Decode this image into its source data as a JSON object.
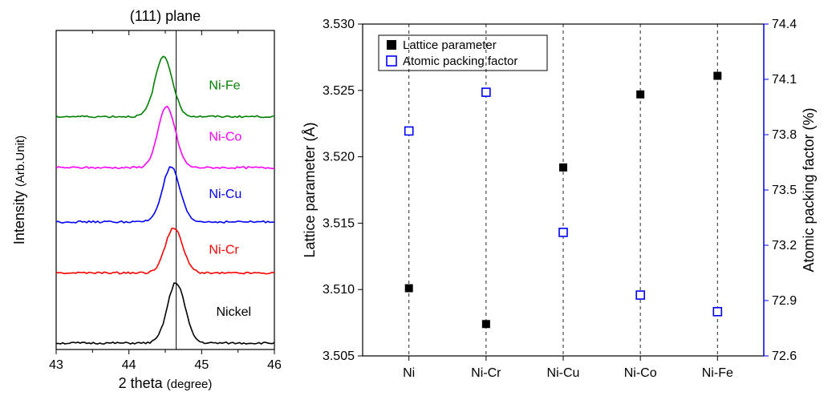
{
  "left_chart": {
    "type": "line-stack",
    "title_top": "(111) plane",
    "x_title_main": "2 theta ",
    "x_title_unit": "(degree)",
    "y_title_main": "Intensity ",
    "y_title_unit": "(Arb.Unit)",
    "xlim": [
      43,
      46
    ],
    "xticks": [
      43,
      44,
      45,
      46
    ],
    "vline_x": 44.65,
    "plot_bg": "#ffffff",
    "series": [
      {
        "name": "Nickel",
        "color": "#000000",
        "peak_x": 44.65,
        "label_x": 45.2,
        "baseline_frac": 0.02,
        "peak_frac": 0.21
      },
      {
        "name": "Ni-Cr",
        "color": "#ff0000",
        "peak_x": 44.62,
        "label_x": 45.1,
        "baseline_frac": 0.24,
        "peak_frac": 0.38
      },
      {
        "name": "Ni-Cu",
        "color": "#0000ff",
        "peak_x": 44.58,
        "label_x": 45.1,
        "baseline_frac": 0.4,
        "peak_frac": 0.57
      },
      {
        "name": "Ni-Co",
        "color": "#ff00ff",
        "peak_x": 44.52,
        "label_x": 45.1,
        "baseline_frac": 0.57,
        "peak_frac": 0.76
      },
      {
        "name": "Ni-Fe",
        "color": "#008000",
        "peak_x": 44.48,
        "label_x": 45.1,
        "baseline_frac": 0.73,
        "peak_frac": 0.92
      }
    ]
  },
  "right_chart": {
    "type": "scatter-dual-axis",
    "x_categories": [
      "Ni",
      "Ni-Cr",
      "Ni-Cu",
      "Ni-Co",
      "Ni-Fe"
    ],
    "y1_label": "Lattice parameter (Å)",
    "y1_lim": [
      3.505,
      3.53
    ],
    "y1_ticks": [
      3.505,
      3.51,
      3.515,
      3.52,
      3.525,
      3.53
    ],
    "y2_label": "Atomic packing factor (%)",
    "y2_lim": [
      72.6,
      74.4
    ],
    "y2_ticks": [
      72.6,
      72.9,
      73.2,
      73.5,
      73.8,
      74.1,
      74.4
    ],
    "y2_color": "#0000ff",
    "y1_color": "#000000",
    "legend": {
      "items": [
        {
          "marker": "filled",
          "color": "#000000",
          "label": "Lattice parameter"
        },
        {
          "marker": "open",
          "color": "#0000ff",
          "label": "Atomic packing factor"
        }
      ]
    },
    "series_lattice": {
      "marker": "filled",
      "color": "#000000",
      "size": 10,
      "values": [
        3.5101,
        3.5074,
        3.5192,
        3.5247,
        3.5261
      ]
    },
    "series_apf": {
      "marker": "open",
      "color": "#0000ff",
      "size": 10,
      "values": [
        73.82,
        74.03,
        73.27,
        72.93,
        72.84
      ]
    },
    "dashed_verticals": true,
    "plot_bg": "#ffffff"
  }
}
